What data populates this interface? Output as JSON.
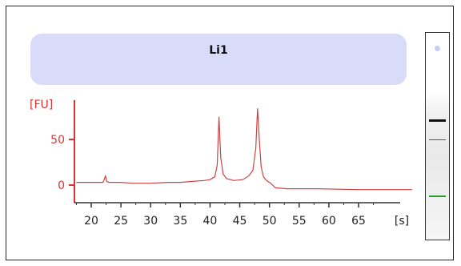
{
  "chart_data": {
    "type": "line",
    "title": "Li1",
    "ylabel": "[FU]",
    "xlabel": "[s]",
    "xlim": [
      17,
      75
    ],
    "ylim": [
      -8,
      90
    ],
    "x_ticks": [
      20,
      25,
      30,
      35,
      40,
      45,
      50,
      55,
      60,
      65
    ],
    "y_ticks": [
      0,
      50
    ],
    "grid": false,
    "series": [
      {
        "color": "#c44",
        "x": [
          17.5,
          20,
          22,
          22.4,
          22.6,
          23,
          25,
          27,
          30,
          33,
          35,
          37,
          39,
          40,
          40.8,
          41.2,
          41.5,
          41.8,
          42.2,
          42.8,
          44,
          45.5,
          46.5,
          47.2,
          47.7,
          48.0,
          48.3,
          48.6,
          49.0,
          49.5,
          50.2,
          51,
          53,
          58,
          65,
          70,
          74
        ],
        "y": [
          3,
          3,
          3,
          10,
          4,
          3,
          3,
          2,
          2,
          3,
          3,
          4,
          5,
          6,
          9,
          22,
          75,
          30,
          12,
          7,
          5,
          6,
          10,
          16,
          40,
          84,
          50,
          20,
          9,
          5,
          2,
          -3,
          -4,
          -4,
          -5,
          -5,
          -5
        ]
      }
    ]
  },
  "gel": {
    "dot_color": "#c9cdf4",
    "band_colors": [
      "#111111",
      "#555555",
      "#2a9d2a"
    ]
  }
}
